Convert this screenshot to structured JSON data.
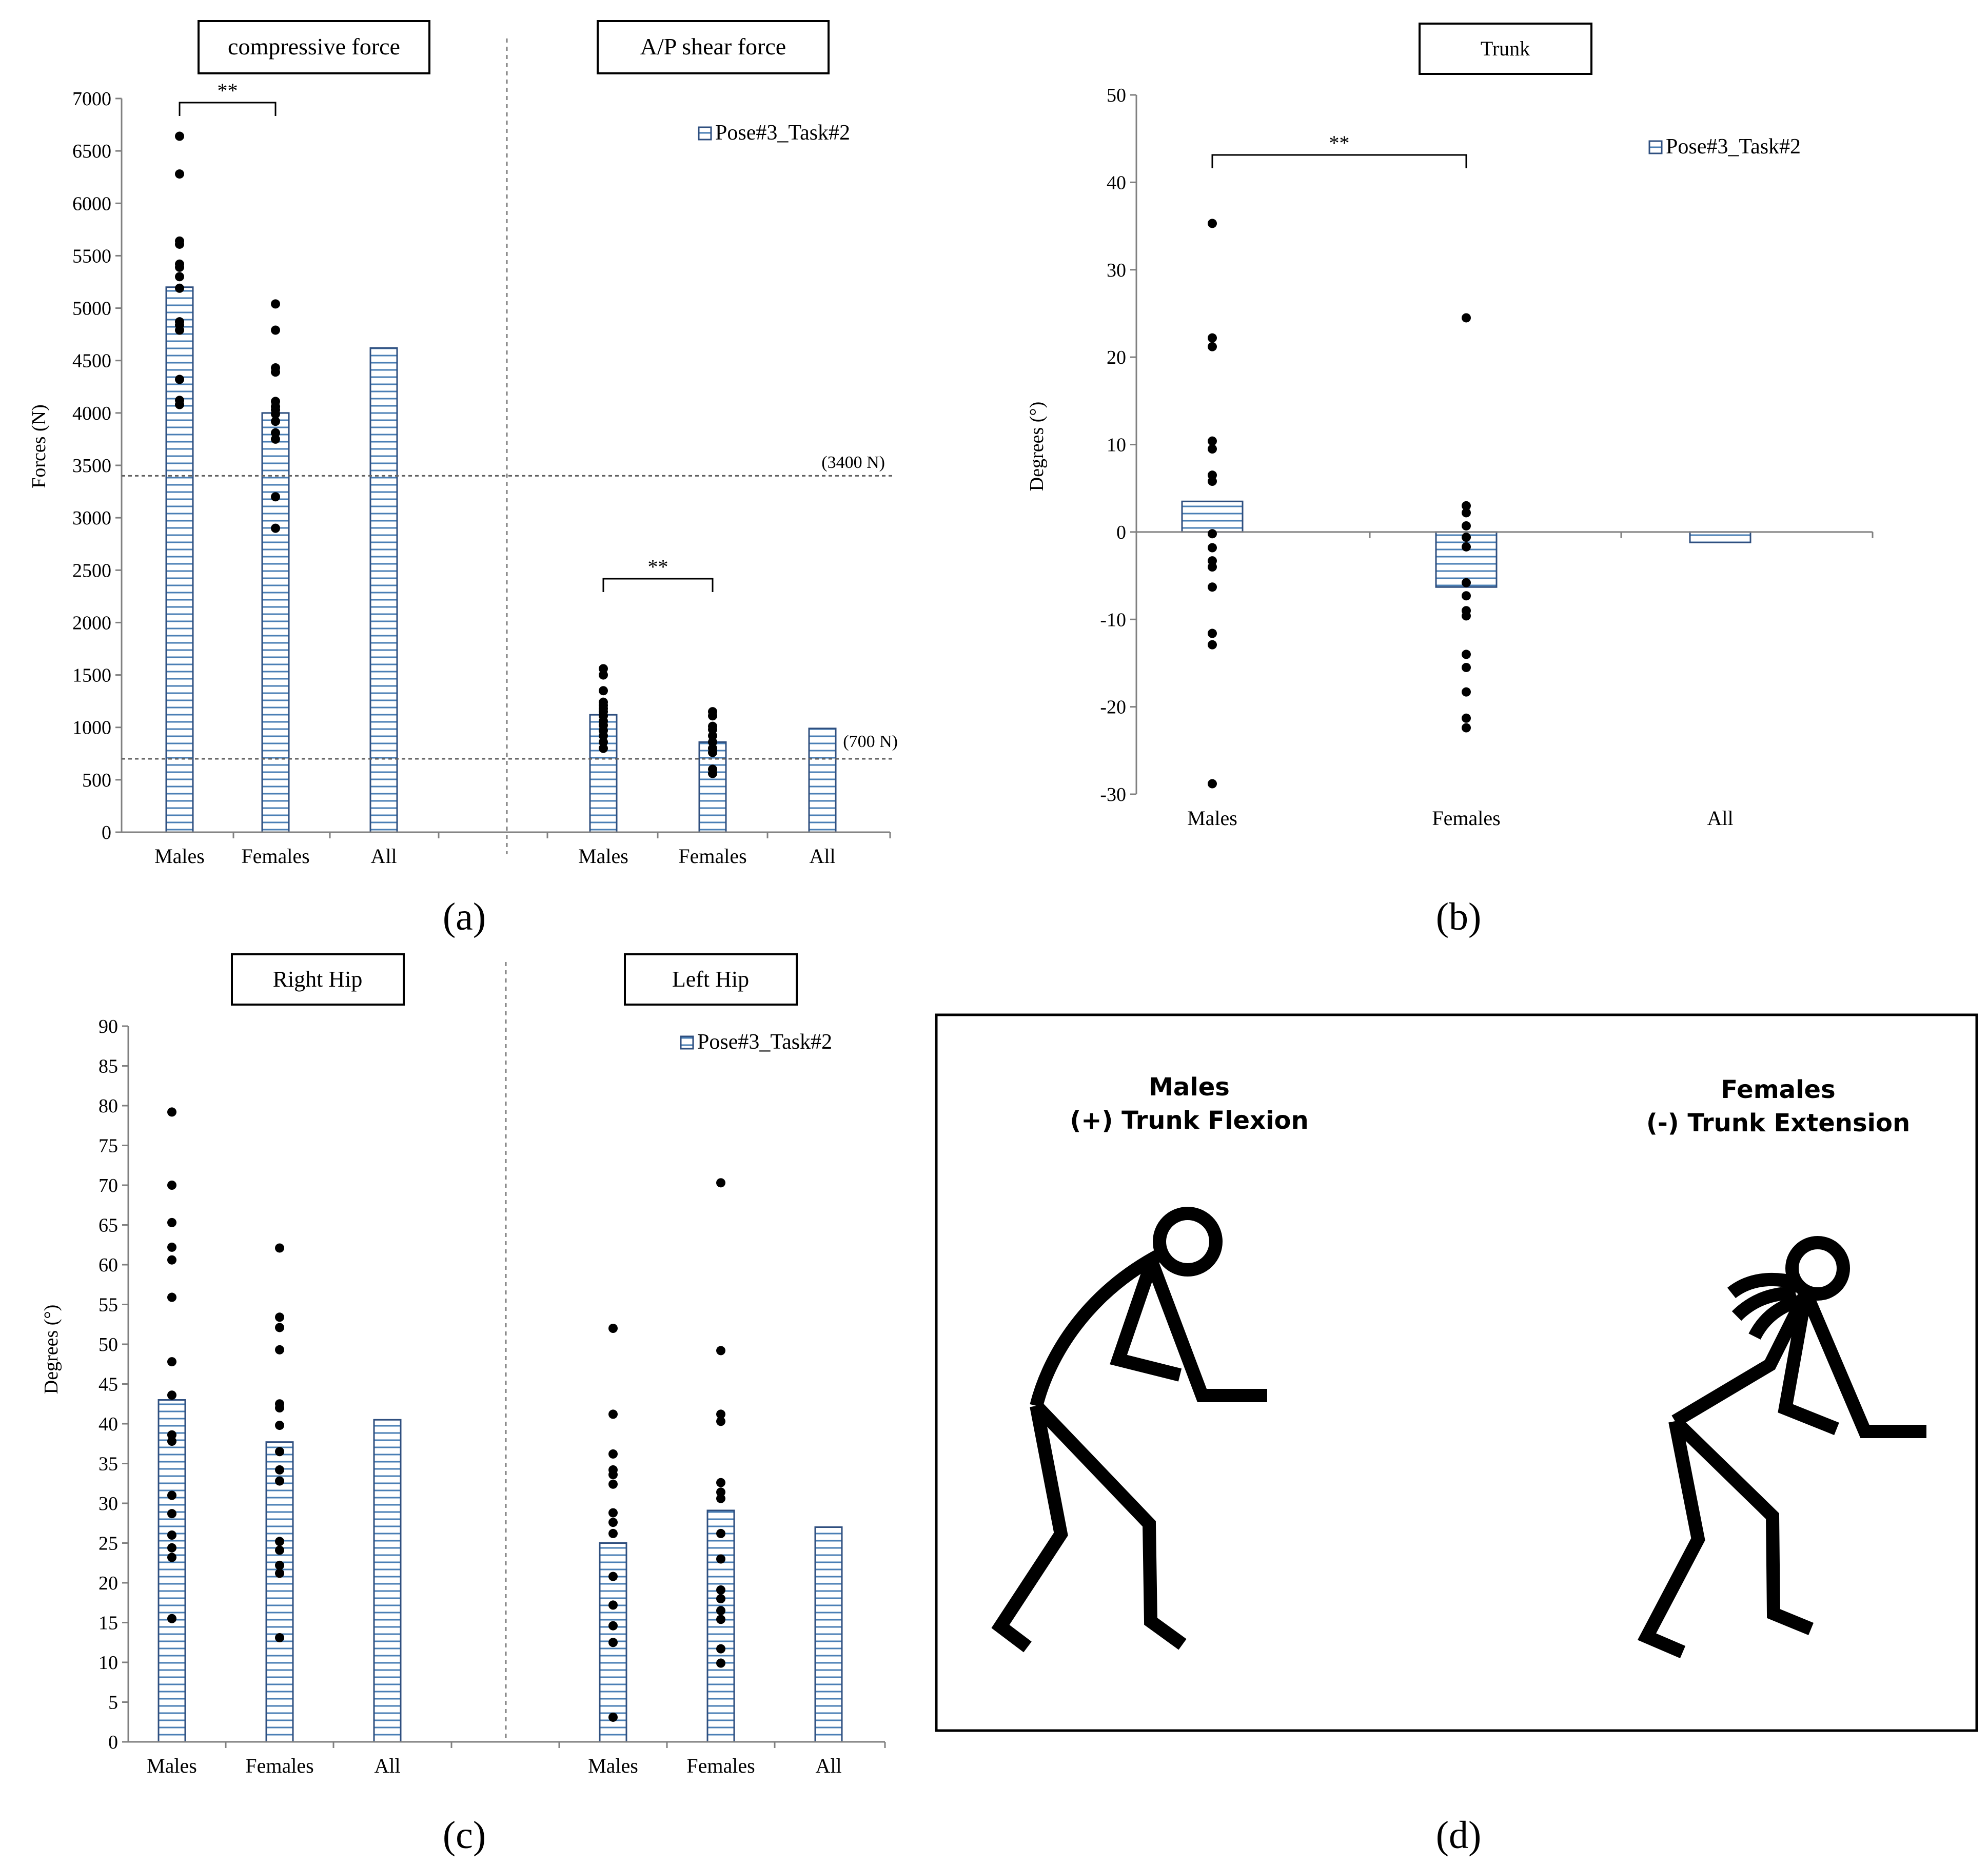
{
  "panel_labels": [
    "(a)",
    "(b)",
    "(c)",
    "(d)"
  ],
  "colors": {
    "bar_fill": "#ffffff",
    "bar_stroke": "#2f4f7f",
    "bar_hatch": "#4a7fb5",
    "dot": "#000000",
    "axis": "#808080",
    "refline": "#606060",
    "text": "#000000"
  },
  "chart_data": [
    {
      "id": "a",
      "type": "bar",
      "ylabel": "Forces (N)",
      "ylim": [
        0,
        7000
      ],
      "yticks": [
        0,
        500,
        1000,
        1500,
        2000,
        2500,
        3000,
        3500,
        4000,
        4500,
        5000,
        5500,
        6000,
        6500,
        7000
      ],
      "legend": "Pose#3_Task#2",
      "legend_position": "top-right",
      "reference_lines": [
        {
          "value": 3400,
          "label": "(3400 N)"
        },
        {
          "value": 700,
          "label": "(700 N)"
        }
      ],
      "sections": [
        {
          "title": "compressive force",
          "categories": [
            "Males",
            "Females",
            "All"
          ],
          "values": [
            5200,
            4000,
            4620
          ],
          "significance": {
            "label": "**",
            "between": [
              "Males",
              "Females"
            ]
          },
          "points": [
            [
              6640,
              6280,
              5640,
              5610,
              5420,
              5390,
              5300,
              5190,
              4870,
              4840,
              4790,
              4320,
              4120,
              4080
            ],
            [
              5040,
              4790,
              4430,
              4390,
              4110,
              4060,
              4030,
              3990,
              3920,
              3810,
              3750,
              3200,
              2900
            ],
            []
          ]
        },
        {
          "title": "A/P shear force",
          "categories": [
            "Males",
            "Females",
            "All"
          ],
          "values": [
            1120,
            860,
            990
          ],
          "significance": {
            "label": "**",
            "between": [
              "Males",
              "Females"
            ]
          },
          "points": [
            [
              1560,
              1500,
              1350,
              1240,
              1210,
              1180,
              1150,
              1110,
              1060,
              1020,
              970,
              920,
              860,
              800
            ],
            [
              1150,
              1110,
              1010,
              980,
              920,
              860,
              800,
              760,
              600,
              560
            ],
            []
          ]
        }
      ]
    },
    {
      "id": "b",
      "type": "bar",
      "title": "Trunk",
      "ylabel": "Degrees (°)",
      "ylim": [
        -30,
        50
      ],
      "yticks": [
        -30,
        -20,
        -10,
        0,
        10,
        20,
        30,
        40,
        50
      ],
      "legend": "Pose#3_Task#2",
      "legend_position": "top-right",
      "categories": [
        "Males",
        "Females",
        "All"
      ],
      "values": [
        3.5,
        -6.3,
        -1.2
      ],
      "significance": {
        "label": "**",
        "between": [
          "Males",
          "Females"
        ]
      },
      "points": [
        [
          35.3,
          22.2,
          21.2,
          10.4,
          9.5,
          6.5,
          5.8,
          -0.2,
          -1.8,
          -3.3,
          -4.0,
          -6.3,
          -11.6,
          -12.9,
          -28.8
        ],
        [
          24.5,
          3.0,
          2.2,
          0.7,
          -0.6,
          -1.7,
          -5.8,
          -7.3,
          -9.0,
          -9.6,
          -14.0,
          -15.5,
          -18.3,
          -21.3,
          -22.4
        ],
        []
      ]
    },
    {
      "id": "c",
      "type": "bar",
      "ylabel": "Degrees (°)",
      "ylim": [
        0,
        90
      ],
      "yticks": [
        0,
        5,
        10,
        15,
        20,
        25,
        30,
        35,
        40,
        45,
        50,
        55,
        60,
        65,
        70,
        75,
        80,
        85,
        90
      ],
      "legend": "Pose#3_Task#2",
      "legend_position": "top-right",
      "sections": [
        {
          "title": "Right Hip",
          "categories": [
            "Males",
            "Females",
            "All"
          ],
          "values": [
            43,
            37.7,
            40.5
          ],
          "points": [
            [
              79.2,
              70,
              65.3,
              62.2,
              60.6,
              55.9,
              47.8,
              43.6,
              38.6,
              37.8,
              31,
              28.7,
              26,
              24.4,
              23.2,
              15.5
            ],
            [
              62.1,
              53.4,
              52.1,
              49.3,
              42.5,
              42,
              39.8,
              36.5,
              34.2,
              32.8,
              25.2,
              24.1,
              22.2,
              21.2,
              13.1
            ],
            []
          ]
        },
        {
          "title": "Left Hip",
          "categories": [
            "Males",
            "Females",
            "All"
          ],
          "values": [
            25,
            29.1,
            27
          ],
          "points": [
            [
              52,
              41.2,
              36.2,
              34.2,
              33.6,
              32.4,
              28.8,
              27.6,
              26.2,
              20.8,
              17.2,
              14.6,
              12.5,
              3.1
            ],
            [
              70.3,
              49.2,
              41.2,
              40.3,
              32.6,
              31.4,
              30.6,
              26.2,
              23,
              19.1,
              18,
              16.5,
              15.4,
              11.7,
              9.9
            ],
            []
          ]
        }
      ]
    }
  ],
  "illustration": {
    "males_label": "Males",
    "males_sublabel": "(+) Trunk Flexion",
    "females_label": "Females",
    "females_sublabel": "(-) Trunk Extension"
  }
}
